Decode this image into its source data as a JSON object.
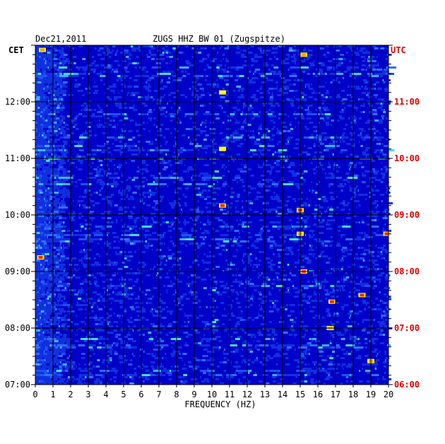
{
  "chart_data": {
    "type": "heatmap",
    "title_left": "Dec21,2011",
    "title_center": "ZUGS HHZ BW 01 (Zugspitze)",
    "left_zone": "CET",
    "right_zone": "UTC",
    "xlabel": "FREQUENCY (HZ)",
    "xlim": [
      0,
      20
    ],
    "x_ticks": [
      "0",
      "1",
      "2",
      "3",
      "4",
      "5",
      "6",
      "7",
      "8",
      "9",
      "10",
      "11",
      "12",
      "13",
      "14",
      "15",
      "16",
      "17",
      "18",
      "19",
      "20"
    ],
    "time_range_cet": [
      "07:00",
      "13:00"
    ],
    "y_ticks_cet": [
      "12:00",
      "11:00",
      "10:00",
      "09:00",
      "08:00",
      "07:00"
    ],
    "y_ticks_utc": [
      "11:00",
      "10:00",
      "09:00",
      "08:00",
      "07:00",
      "06:00"
    ],
    "grid": true,
    "colors": {
      "background": "#0000c8",
      "low": "#1030e0",
      "mid": "#40b0ff",
      "high": "#ffff00",
      "peak": "#ff2000",
      "utc_label": "#dd0000",
      "gridline": "#000000"
    },
    "hot_spots": [
      {
        "freq": 0.4,
        "cet": "12:55",
        "level": 0.9
      },
      {
        "freq": 15.2,
        "cet": "12:50",
        "level": 0.85
      },
      {
        "freq": 10.6,
        "cet": "12:10",
        "level": 0.8
      },
      {
        "freq": 10.6,
        "cet": "11:10",
        "level": 0.8
      },
      {
        "freq": 10.6,
        "cet": "10:10",
        "level": 0.95
      },
      {
        "freq": 15.0,
        "cet": "10:05",
        "level": 1.0
      },
      {
        "freq": 15.0,
        "cet": "09:40",
        "level": 0.9
      },
      {
        "freq": 19.9,
        "cet": "09:40",
        "level": 1.0
      },
      {
        "freq": 15.2,
        "cet": "09:00",
        "level": 0.95
      },
      {
        "freq": 18.5,
        "cet": "08:35",
        "level": 1.0
      },
      {
        "freq": 16.8,
        "cet": "08:28",
        "level": 0.95
      },
      {
        "freq": 16.7,
        "cet": "08:00",
        "level": 0.85
      },
      {
        "freq": 19.0,
        "cet": "07:25",
        "level": 0.85
      },
      {
        "freq": 0.3,
        "cet": "09:15",
        "level": 0.95
      }
    ]
  }
}
